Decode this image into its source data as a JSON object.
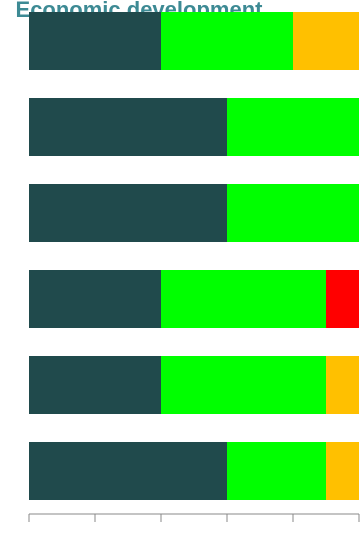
{
  "chart_data": {
    "type": "bar",
    "orientation": "horizontal",
    "stacked": true,
    "title": "Economic development",
    "categories": [
      "",
      "",
      "",
      "",
      "",
      ""
    ],
    "series": [
      {
        "color": "#204a4c",
        "values": [
          2,
          3,
          3,
          2,
          2,
          3
        ]
      },
      {
        "color": "#00ff00",
        "values": [
          2,
          2,
          2,
          2.5,
          2.5,
          1.5
        ]
      },
      {
        "color": "#ffc000",
        "values": [
          1,
          0,
          0,
          0,
          0.5,
          0.5
        ]
      },
      {
        "color": "#ff0000",
        "values": [
          0,
          0,
          0,
          0.5,
          0,
          0
        ]
      }
    ],
    "xlim": [
      0,
      5
    ],
    "grid": false,
    "legend": "none"
  }
}
